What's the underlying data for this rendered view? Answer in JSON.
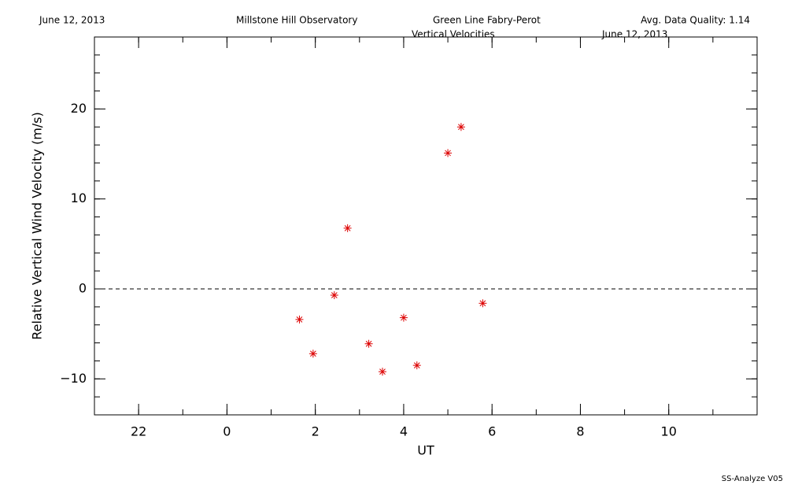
{
  "chart_data": {
    "type": "scatter",
    "header": {
      "date": "June 12, 2013",
      "observatory": "Millstone Hill Observatory",
      "instrument": "Green Line Fabry-Perot",
      "quality": "Avg. Data Quality: 1.14"
    },
    "title": "Vertical Velocities",
    "subtitle": "June 12, 2013",
    "footer": "SS-Analyze V05",
    "xlabel": "UT",
    "ylabel": "Relative Vertical Wind Velocity (m/s)",
    "x": [
      1.64,
      1.95,
      2.43,
      2.73,
      3.21,
      3.52,
      4.0,
      4.3,
      5.0,
      5.3,
      5.79
    ],
    "values": [
      -3.4,
      -7.2,
      -0.7,
      6.75,
      -6.1,
      -9.2,
      -3.2,
      -8.5,
      15.1,
      18.0,
      -1.6
    ],
    "color": "#dd0000",
    "marker": "asterisk",
    "hline": 0,
    "xlim": [
      -3,
      12
    ],
    "xticks": [
      {
        "value": -2,
        "label": "22"
      },
      0,
      2,
      4,
      6,
      8,
      10
    ],
    "ylim": [
      -14,
      28
    ],
    "yticks": [
      {
        "value": -10,
        "label": "−10"
      },
      0,
      10,
      20
    ]
  }
}
